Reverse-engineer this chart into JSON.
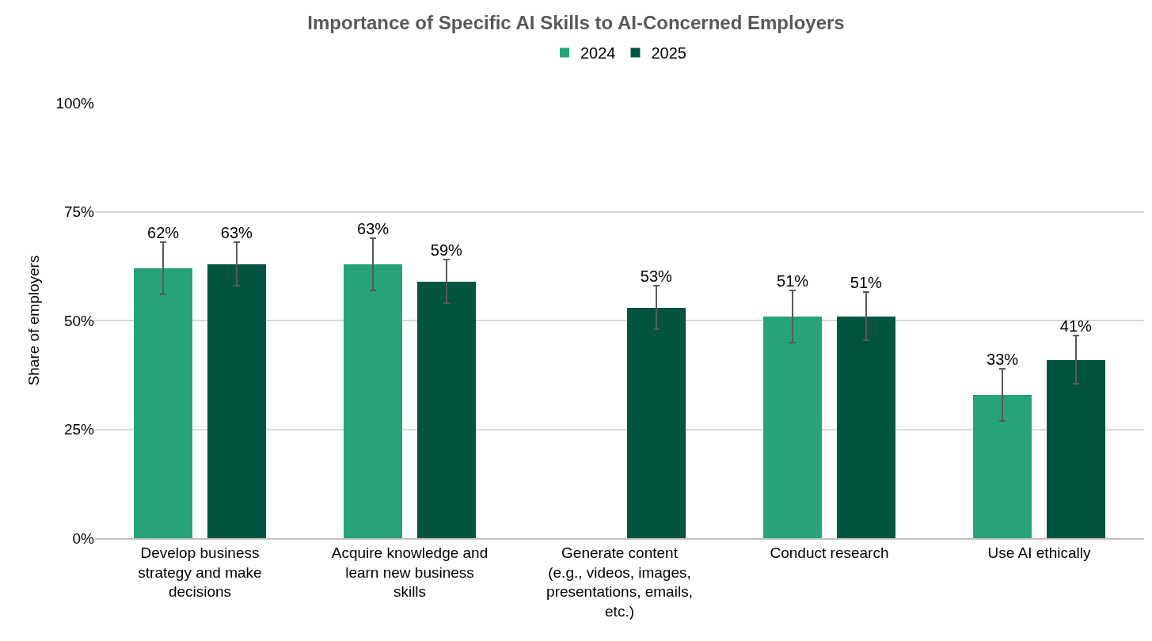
{
  "chart_data": {
    "type": "bar",
    "title": "Importance of Specific AI Skills to AI-Concerned Employers",
    "ylabel": "Share of employers",
    "categories": [
      "Develop business strategy and make decisions",
      "Acquire knowledge and learn new business skills",
      "Generate content (e.g., videos, images, presentations, emails, etc.)",
      "Conduct research",
      "Use AI ethically"
    ],
    "series": [
      {
        "name": "2024",
        "color": "#27a37a",
        "values": [
          62,
          63,
          null,
          51,
          33
        ],
        "errors": [
          6,
          6,
          null,
          6,
          6
        ],
        "value_labels": [
          "62%",
          "63%",
          null,
          "51%",
          "33%"
        ]
      },
      {
        "name": "2025",
        "color": "#005440",
        "values": [
          63,
          59,
          53,
          51,
          41
        ],
        "errors": [
          5,
          5,
          5,
          5.5,
          5.5
        ],
        "value_labels": [
          "63%",
          "59%",
          "53%",
          "51%",
          "41%"
        ]
      }
    ],
    "ylim": [
      0,
      100
    ],
    "yticks": [
      {
        "value": 0,
        "label": "0%"
      },
      {
        "value": 25,
        "label": "25%"
      },
      {
        "value": 50,
        "label": "50%"
      },
      {
        "value": 75,
        "label": "75%"
      },
      {
        "value": 100,
        "label": "100%"
      }
    ],
    "grid": "y",
    "legend": "top"
  }
}
